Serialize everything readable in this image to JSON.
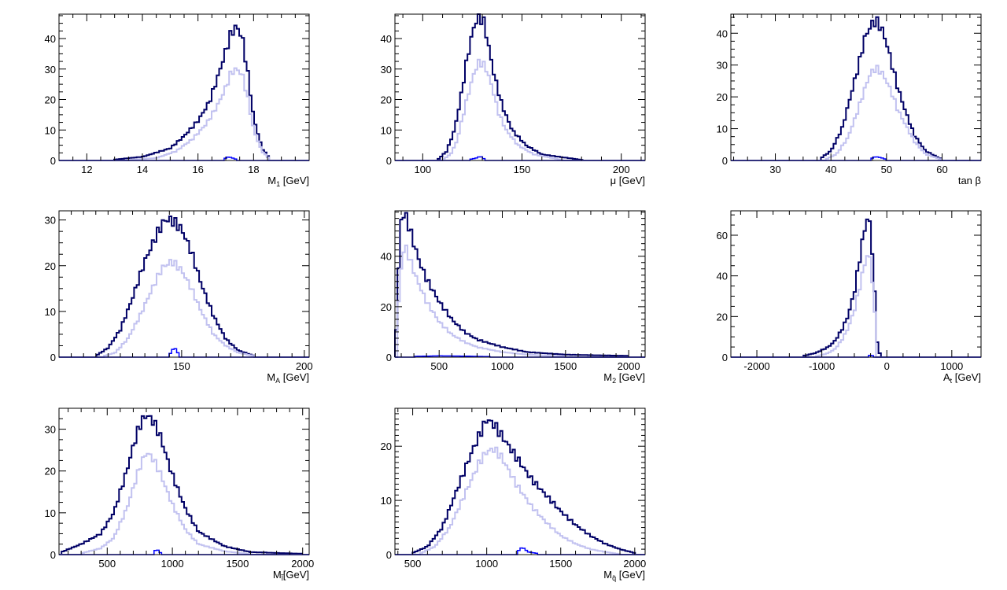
{
  "colors": {
    "total": "#000066",
    "pass": "#c2c2f0",
    "selected": "#0000ff",
    "frame": "#000000"
  },
  "chart_data": [
    {
      "type": "histogram",
      "xlabel_main": "M",
      "xlabel_sub": "1",
      "xlabel_unit": " [GeV]",
      "xlim": [
        11,
        20
      ],
      "ylim": [
        0,
        48
      ],
      "xticks": [
        "12",
        "14",
        "16",
        "18"
      ],
      "yticks": [
        "0",
        "10",
        "20",
        "30",
        "40"
      ],
      "series": [
        {
          "role": "total",
          "x": [
            13,
            14,
            15,
            15.5,
            16,
            16.4,
            16.7,
            17.0,
            17.2,
            17.4,
            17.6,
            17.8,
            18.0,
            18.3,
            18.6
          ],
          "y": [
            0.3,
            1.2,
            4,
            8,
            13,
            19,
            27,
            36,
            42,
            44,
            40,
            28,
            14,
            4,
            0.5
          ]
        },
        {
          "role": "pass",
          "x": [
            13.5,
            14.5,
            15.2,
            15.8,
            16.3,
            16.7,
            17.0,
            17.2,
            17.4,
            17.6,
            17.8,
            18.0,
            18.3,
            18.6
          ],
          "y": [
            0.2,
            0.8,
            3,
            7,
            12,
            18,
            24,
            29,
            30,
            28,
            20,
            10,
            3,
            0.3
          ]
        },
        {
          "role": "selected",
          "x": [
            16.9,
            17.1,
            17.25,
            17.4
          ],
          "y": [
            0.4,
            1.2,
            0.8,
            0.3
          ]
        }
      ]
    },
    {
      "type": "histogram",
      "xlabel_main": "μ",
      "xlabel_sub": "",
      "xlabel_unit": " [GeV]",
      "xlim": [
        86,
        212
      ],
      "ylim": [
        0,
        48
      ],
      "xticks": [
        "100",
        "150",
        "200"
      ],
      "yticks": [
        "0",
        "10",
        "20",
        "30",
        "40"
      ],
      "series": [
        {
          "role": "total",
          "x": [
            108,
            112,
            116,
            119,
            122,
            125,
            127,
            129,
            131,
            133,
            136,
            140,
            145,
            152,
            160,
            180
          ],
          "y": [
            0.5,
            3,
            10,
            20,
            32,
            42,
            46,
            47,
            45,
            38,
            28,
            18,
            10,
            5,
            2,
            0.2
          ]
        },
        {
          "role": "pass",
          "x": [
            110,
            114,
            117,
            120,
            123,
            126,
            128,
            130,
            132,
            135,
            138,
            142,
            148,
            156,
            170
          ],
          "y": [
            0.3,
            2,
            6,
            14,
            22,
            29,
            32,
            32,
            30,
            24,
            16,
            10,
            5,
            2,
            0.2
          ]
        },
        {
          "role": "selected",
          "x": [
            124,
            127,
            129,
            131
          ],
          "y": [
            0.4,
            0.8,
            1.4,
            0.5
          ]
        }
      ]
    },
    {
      "type": "histogram",
      "xlabel_main": "tan β",
      "xlabel_sub": "",
      "xlabel_unit": "",
      "xlim": [
        22,
        67
      ],
      "ylim": [
        0,
        46
      ],
      "xticks": [
        "30",
        "40",
        "50",
        "60"
      ],
      "yticks": [
        "0",
        "10",
        "20",
        "30",
        "40"
      ],
      "series": [
        {
          "role": "total",
          "x": [
            38,
            40,
            42,
            43.5,
            45,
            46,
            47,
            48,
            49,
            50,
            51,
            52,
            53.5,
            55,
            57,
            60
          ],
          "y": [
            0.5,
            3,
            10,
            20,
            30,
            38,
            42,
            44,
            42,
            37,
            30,
            23,
            15,
            8,
            3,
            0.3
          ]
        },
        {
          "role": "pass",
          "x": [
            39,
            41,
            43,
            44.5,
            46,
            47,
            48,
            49,
            50,
            51,
            52,
            53.5,
            55,
            57,
            60
          ],
          "y": [
            0.3,
            2,
            7,
            14,
            22,
            27,
            29,
            28,
            25,
            21,
            16,
            11,
            6,
            2,
            0.2
          ]
        },
        {
          "role": "selected",
          "x": [
            47,
            48,
            49,
            50
          ],
          "y": [
            0.4,
            1.2,
            0.9,
            0.3
          ]
        }
      ]
    },
    {
      "type": "histogram",
      "xlabel_main": "M",
      "xlabel_sub": "A",
      "xlabel_unit": " [GeV]",
      "xlim": [
        100,
        202
      ],
      "ylim": [
        0,
        32
      ],
      "xticks": [
        "150",
        "200"
      ],
      "yticks": [
        "0",
        "10",
        "20",
        "30"
      ],
      "series": [
        {
          "role": "total",
          "x": [
            115,
            120,
            125,
            130,
            135,
            140,
            143,
            146,
            150,
            154,
            158,
            163,
            168,
            173,
            180
          ],
          "y": [
            0.3,
            2,
            6,
            13,
            21,
            27,
            30,
            30,
            28,
            23,
            16,
            9,
            4,
            1.5,
            0.2
          ]
        },
        {
          "role": "pass",
          "x": [
            118,
            123,
            128,
            133,
            138,
            142,
            146,
            150,
            154,
            158,
            163,
            168,
            173,
            180
          ],
          "y": [
            0.2,
            1,
            4,
            9,
            15,
            19.5,
            21,
            19,
            15,
            10,
            5,
            2.5,
            1,
            0.2
          ]
        },
        {
          "role": "selected",
          "x": [
            145,
            147,
            149
          ],
          "y": [
            0.5,
            2.2,
            0.5
          ]
        }
      ]
    },
    {
      "type": "histogram",
      "xlabel_main": "M",
      "xlabel_sub": "2",
      "xlabel_unit": " [GeV]",
      "xlim": [
        150,
        2130
      ],
      "ylim": [
        0,
        58
      ],
      "xticks": [
        "500",
        "1000",
        "1500",
        "2000"
      ],
      "yticks": [
        "0",
        "20",
        "40"
      ],
      "series": [
        {
          "role": "total",
          "x": [
            155,
            175,
            200,
            230,
            260,
            300,
            350,
            400,
            500,
            600,
            700,
            800,
            1000,
            1200,
            1500,
            2000
          ],
          "y": [
            5,
            30,
            55,
            57,
            52,
            45,
            37,
            31,
            22,
            15,
            10,
            7,
            4,
            2,
            1,
            0.5
          ]
        },
        {
          "role": "pass",
          "x": [
            160,
            180,
            210,
            240,
            280,
            330,
            400,
            500,
            600,
            700,
            800,
            1000,
            1200,
            1500
          ],
          "y": [
            3,
            22,
            42,
            43,
            37,
            30,
            22,
            14,
            9,
            6,
            4,
            2,
            1,
            0.3
          ]
        },
        {
          "role": "selected",
          "x": [
            300,
            500,
            700,
            900
          ],
          "y": [
            0.3,
            0.5,
            0.4,
            0.2
          ]
        }
      ]
    },
    {
      "type": "histogram",
      "xlabel_main": "A",
      "xlabel_sub": "t",
      "xlabel_unit": " [GeV]",
      "xlim": [
        -2400,
        1450
      ],
      "ylim": [
        0,
        72
      ],
      "xticks": [
        "-2000",
        "-1000",
        "0",
        "1000"
      ],
      "yticks": [
        "0",
        "20",
        "40",
        "60"
      ],
      "series": [
        {
          "role": "total",
          "x": [
            -1300,
            -1100,
            -900,
            -800,
            -700,
            -600,
            -500,
            -450,
            -400,
            -350,
            -300,
            -250,
            -200,
            -150,
            -100
          ],
          "y": [
            0.5,
            2,
            5,
            8,
            13,
            20,
            32,
            42,
            52,
            62,
            68,
            65,
            40,
            8,
            0.5
          ]
        },
        {
          "role": "pass",
          "x": [
            -1100,
            -900,
            -800,
            -700,
            -600,
            -500,
            -450,
            -400,
            -350,
            -300,
            -250,
            -200,
            -150
          ],
          "y": [
            0.3,
            2,
            4,
            8,
            14,
            23,
            30,
            37,
            45,
            50,
            48,
            28,
            4
          ]
        },
        {
          "role": "selected",
          "x": [
            -300,
            -250,
            -200
          ],
          "y": [
            0.5,
            1,
            0.5
          ]
        }
      ]
    },
    {
      "type": "histogram",
      "xlabel_main": "M",
      "xlabel_sub": "l̃",
      "xlabel_unit": "[GeV]",
      "xlim": [
        130,
        2050
      ],
      "ylim": [
        0,
        35
      ],
      "xticks": [
        "500",
        "1000",
        "1500",
        "2000"
      ],
      "yticks": [
        "0",
        "10",
        "20",
        "30"
      ],
      "series": [
        {
          "role": "total",
          "x": [
            140,
            300,
            450,
            550,
            650,
            700,
            750,
            800,
            850,
            900,
            950,
            1000,
            1100,
            1200,
            1400,
            1600,
            2000
          ],
          "y": [
            0.5,
            2.5,
            5,
            10,
            20,
            26,
            31,
            33.5,
            32,
            29,
            24,
            19,
            11,
            5.5,
            2,
            0.6,
            0.2
          ]
        },
        {
          "role": "pass",
          "x": [
            300,
            450,
            550,
            650,
            700,
            750,
            800,
            850,
            900,
            950,
            1000,
            1100,
            1200,
            1400,
            1600
          ],
          "y": [
            0.3,
            1.5,
            4,
            11,
            16,
            21,
            24.5,
            23,
            20,
            16,
            12,
            6,
            2.5,
            0.8,
            0.1
          ]
        },
        {
          "role": "selected",
          "x": [
            850,
            880,
            910
          ],
          "y": [
            0.4,
            1.3,
            0.4
          ]
        }
      ]
    },
    {
      "type": "histogram",
      "xlabel_main": "M",
      "xlabel_sub": "q̃",
      "xlabel_unit": " [GeV]",
      "xlim": [
        380,
        2070
      ],
      "ylim": [
        0,
        27
      ],
      "xticks": [
        "500",
        "1000",
        "1500",
        "2000"
      ],
      "yticks": [
        "0",
        "10",
        "20"
      ],
      "series": [
        {
          "role": "total",
          "x": [
            500,
            600,
            700,
            800,
            900,
            950,
            1000,
            1050,
            1100,
            1200,
            1300,
            1400,
            1500,
            1600,
            1700,
            1800,
            1900,
            2000
          ],
          "y": [
            0.3,
            1.5,
            5,
            12,
            19,
            22,
            25,
            24,
            22,
            18,
            14,
            11,
            8,
            5.5,
            3.5,
            2,
            1,
            0.3
          ]
        },
        {
          "role": "pass",
          "x": [
            550,
            650,
            750,
            850,
            950,
            1000,
            1050,
            1100,
            1200,
            1300,
            1400,
            1500,
            1600,
            1700,
            1800,
            1900
          ],
          "y": [
            0.2,
            1.5,
            5,
            11,
            17,
            19,
            19.5,
            18,
            13,
            9,
            6,
            3.5,
            2,
            1,
            0.5,
            0.1
          ]
        },
        {
          "role": "selected",
          "x": [
            1200,
            1240,
            1280,
            1350
          ],
          "y": [
            0.3,
            1.4,
            0.5,
            0.2
          ]
        }
      ]
    }
  ]
}
